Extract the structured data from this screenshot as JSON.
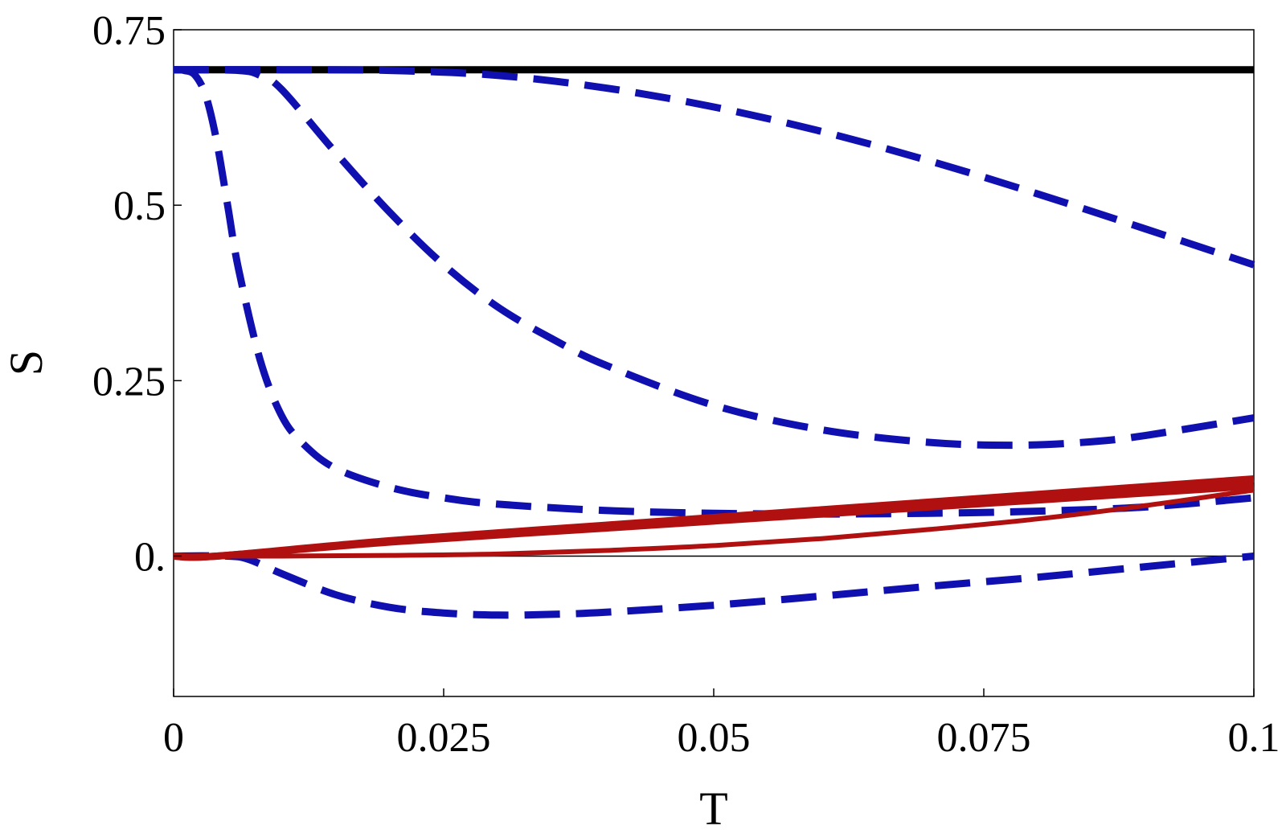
{
  "chart_data": {
    "type": "line",
    "xlabel": "T",
    "ylabel": "S",
    "xlim": [
      0,
      0.1
    ],
    "ylim": [
      -0.2,
      0.75
    ],
    "xticks": [
      {
        "value": 0,
        "label": "0"
      },
      {
        "value": 0.025,
        "label": "0.025"
      },
      {
        "value": 0.05,
        "label": "0.05"
      },
      {
        "value": 0.075,
        "label": "0.075"
      },
      {
        "value": 0.1,
        "label": "0.1"
      }
    ],
    "yticks": [
      {
        "value": 0,
        "label": "0."
      },
      {
        "value": 0.25,
        "label": "0.25"
      },
      {
        "value": 0.5,
        "label": "0.5"
      },
      {
        "value": 0.75,
        "label": "0.75"
      }
    ],
    "grid": false,
    "legend": "none",
    "reference_lines": [
      {
        "y": 0,
        "color": "#000000"
      }
    ],
    "series": [
      {
        "style": "solid",
        "color": "#000000",
        "weight": "thick",
        "x": [
          0,
          0.1
        ],
        "y": [
          0.693,
          0.693
        ]
      },
      {
        "style": "dashed",
        "color": "#1010b0",
        "x": [
          0,
          0.01,
          0.02,
          0.03,
          0.04,
          0.05,
          0.06,
          0.07,
          0.08,
          0.09,
          0.1
        ],
        "y": [
          0.693,
          0.693,
          0.692,
          0.685,
          0.667,
          0.64,
          0.605,
          0.563,
          0.516,
          0.466,
          0.415
        ]
      },
      {
        "style": "dashed",
        "color": "#1010b0",
        "x": [
          0,
          0.006,
          0.008,
          0.01,
          0.015,
          0.02,
          0.025,
          0.03,
          0.035,
          0.04,
          0.05,
          0.06,
          0.07,
          0.078,
          0.085,
          0.09,
          0.1
        ],
        "y": [
          0.693,
          0.692,
          0.685,
          0.665,
          0.575,
          0.49,
          0.415,
          0.355,
          0.31,
          0.272,
          0.215,
          0.18,
          0.162,
          0.158,
          0.163,
          0.172,
          0.197
        ]
      },
      {
        "style": "dashed",
        "color": "#1010b0",
        "x": [
          0,
          0.001,
          0.002,
          0.003,
          0.004,
          0.005,
          0.006,
          0.008,
          0.01,
          0.012,
          0.015,
          0.02,
          0.025,
          0.03,
          0.04,
          0.05,
          0.06,
          0.07,
          0.08,
          0.09,
          0.1
        ],
        "y": [
          0.693,
          0.692,
          0.685,
          0.655,
          0.59,
          0.5,
          0.41,
          0.28,
          0.2,
          0.16,
          0.125,
          0.098,
          0.083,
          0.074,
          0.065,
          0.061,
          0.06,
          0.061,
          0.064,
          0.07,
          0.083
        ]
      },
      {
        "style": "dashed",
        "color": "#1010b0",
        "x": [
          0,
          0.005,
          0.007,
          0.01,
          0.015,
          0.02,
          0.025,
          0.03,
          0.035,
          0.04,
          0.05,
          0.06,
          0.07,
          0.08,
          0.09,
          0.1
        ],
        "y": [
          0,
          0,
          -0.005,
          -0.025,
          -0.055,
          -0.073,
          -0.081,
          -0.084,
          -0.083,
          -0.08,
          -0.07,
          -0.057,
          -0.043,
          -0.03,
          -0.015,
          0
        ]
      },
      {
        "style": "solid",
        "color": "#b01010",
        "weight": "thick",
        "x": [
          0,
          0.004,
          0.02,
          0.04,
          0.06,
          0.08,
          0.1
        ],
        "y": [
          0,
          0,
          0.022,
          0.044,
          0.066,
          0.088,
          0.11
        ]
      },
      {
        "style": "solid",
        "color": "#b01010",
        "weight": "thick",
        "x": [
          0,
          0.004,
          0.02,
          0.04,
          0.06,
          0.08,
          0.1
        ],
        "y": [
          0,
          0,
          0.02,
          0.04,
          0.06,
          0.08,
          0.1
        ]
      },
      {
        "style": "solid",
        "color": "#b01010",
        "weight": "medium",
        "x": [
          0,
          0.01,
          0.02,
          0.03,
          0.04,
          0.05,
          0.06,
          0.07,
          0.08,
          0.09,
          0.1
        ],
        "y": [
          0,
          0,
          0.001,
          0.003,
          0.008,
          0.015,
          0.025,
          0.038,
          0.053,
          0.072,
          0.094
        ]
      }
    ]
  }
}
